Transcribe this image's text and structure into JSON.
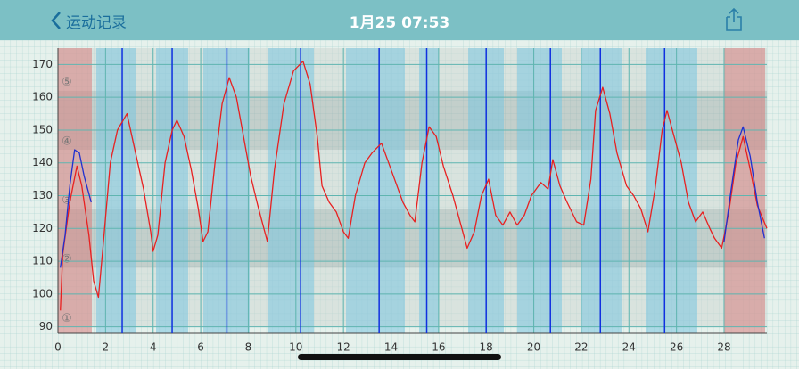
{
  "header": {
    "back": "运动记录",
    "title": "1月25 07:53"
  },
  "chart_data": {
    "type": "line",
    "xlim": [
      0,
      29.8
    ],
    "ylim": [
      88,
      175
    ],
    "xticks": [
      0,
      2,
      4,
      6,
      8,
      10,
      12,
      14,
      16,
      18,
      20,
      22,
      24,
      26,
      28
    ],
    "yticks": [
      90,
      100,
      110,
      120,
      130,
      140,
      150,
      160,
      170
    ],
    "grid": true,
    "zones": [
      {
        "label": "①",
        "from": 90,
        "to": 108
      },
      {
        "label": "②",
        "from": 108,
        "to": 126
      },
      {
        "label": "③",
        "from": 126,
        "to": 144
      },
      {
        "label": "④",
        "from": 144,
        "to": 162
      },
      {
        "label": "⑤",
        "from": 162,
        "to": 175
      }
    ],
    "markers": {
      "color": "#1030e0",
      "x": [
        2.7,
        4.8,
        7.1,
        10.2,
        13.5,
        15.5,
        18.0,
        20.7,
        22.8,
        25.5
      ]
    },
    "series": [
      {
        "color": "#e82020",
        "x": [
          0.1,
          0.2,
          0.5,
          0.8,
          1.0,
          1.3,
          1.5,
          1.7,
          1.9,
          2.2,
          2.5,
          2.9,
          3.2,
          3.6,
          3.9,
          4.0,
          4.2,
          4.5,
          4.8,
          5.0,
          5.3,
          5.6,
          5.9,
          6.1,
          6.3,
          6.6,
          6.9,
          7.2,
          7.5,
          7.8,
          8.1,
          8.4,
          8.8,
          9.1,
          9.5,
          9.9,
          10.3,
          10.6,
          10.9,
          11.1,
          11.4,
          11.7,
          12.0,
          12.2,
          12.5,
          12.9,
          13.2,
          13.6,
          13.9,
          14.2,
          14.5,
          14.8,
          15.0,
          15.3,
          15.6,
          15.9,
          16.2,
          16.6,
          16.9,
          17.2,
          17.5,
          17.8,
          18.1,
          18.4,
          18.7,
          19.0,
          19.3,
          19.6,
          19.9,
          20.3,
          20.6,
          20.8,
          21.1,
          21.4,
          21.8,
          22.1,
          22.4,
          22.6,
          22.9,
          23.2,
          23.5,
          23.9,
          24.2,
          24.5,
          24.8,
          25.1,
          25.4,
          25.6,
          25.9,
          26.2,
          26.5,
          26.8,
          27.1,
          27.4,
          27.6,
          27.9,
          28.2,
          28.5,
          28.8,
          29.1,
          29.4,
          29.8
        ],
        "values": [
          95,
          112,
          128,
          139,
          133,
          118,
          104,
          99,
          115,
          140,
          150,
          155,
          145,
          132,
          119,
          113,
          118,
          140,
          150,
          153,
          148,
          138,
          126,
          116,
          119,
          140,
          158,
          166,
          160,
          148,
          136,
          127,
          116,
          138,
          158,
          168,
          171,
          164,
          148,
          133,
          128,
          125,
          119,
          117,
          130,
          140,
          143,
          146,
          140,
          134,
          128,
          124,
          122,
          140,
          151,
          148,
          139,
          130,
          122,
          114,
          119,
          130,
          135,
          124,
          121,
          125,
          121,
          124,
          130,
          134,
          132,
          141,
          133,
          128,
          122,
          121,
          135,
          156,
          163,
          155,
          143,
          133,
          130,
          126,
          119,
          132,
          150,
          156,
          148,
          140,
          128,
          122,
          125,
          120,
          117,
          114,
          125,
          140,
          148,
          138,
          127,
          120
        ]
      },
      {
        "color": "#2030d0",
        "x": [
          0.1,
          0.3,
          0.5,
          0.7,
          0.9,
          1.1,
          1.4
        ],
        "values": [
          108,
          118,
          133,
          144,
          143,
          136,
          128
        ]
      },
      {
        "color": "#2030d0",
        "x": [
          28.0,
          28.3,
          28.6,
          28.8,
          29.1,
          29.4,
          29.7
        ],
        "values": [
          116,
          132,
          147,
          151,
          142,
          128,
          117
        ]
      }
    ]
  }
}
